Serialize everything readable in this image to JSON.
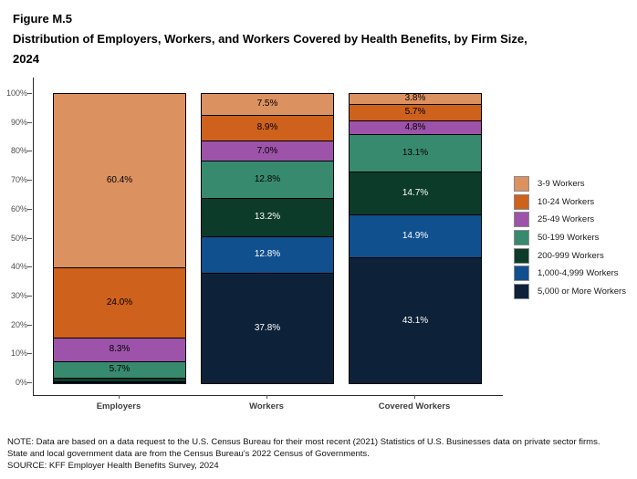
{
  "heading": {
    "lines": [
      "Figure M.5",
      "Distribution of Employers, Workers, and Workers Covered by Health Benefits, by Firm Size,",
      "2024"
    ]
  },
  "chart_data": {
    "type": "bar",
    "stacked": true,
    "title": "Distribution of Employers, Workers, and Workers Covered by Health Benefits, by Firm Size, 2024",
    "categories": [
      "Employers",
      "Workers",
      "Covered Workers"
    ],
    "series": [
      {
        "name": "3-9 Workers",
        "color": "#DC9160",
        "text_color": "#000000",
        "values": [
          60.4,
          7.5,
          3.8
        ],
        "labels": [
          "60.4%",
          "7.5%",
          "3.8%"
        ]
      },
      {
        "name": "10-24 Workers",
        "color": "#CE611B",
        "text_color": "#000000",
        "values": [
          24.0,
          8.9,
          5.7
        ],
        "labels": [
          "24.0%",
          "8.9%",
          "5.7%"
        ]
      },
      {
        "name": "25-49 Workers",
        "color": "#9D53A9",
        "text_color": "#000000",
        "values": [
          8.3,
          7.0,
          4.8
        ],
        "labels": [
          "8.3%",
          "7.0%",
          "4.8%"
        ]
      },
      {
        "name": "50-199 Workers",
        "color": "#388A6E",
        "text_color": "#000000",
        "values": [
          5.7,
          12.8,
          13.1
        ],
        "labels": [
          "5.7%",
          "12.8%",
          "13.1%"
        ]
      },
      {
        "name": "200-999 Workers",
        "color": "#0C3B2A",
        "text_color": "#FFFFFF",
        "values": [
          1.2,
          13.2,
          14.7
        ],
        "labels": [
          "",
          "13.2%",
          "14.7%"
        ]
      },
      {
        "name": "1,000-4,999 Workers",
        "color": "#11508F",
        "text_color": "#FFFFFF",
        "values": [
          0.3,
          12.8,
          14.9
        ],
        "labels": [
          "",
          "12.8%",
          "14.9%"
        ]
      },
      {
        "name": "5,000 or More Workers",
        "color": "#0D2239",
        "text_color": "#FFFFFF",
        "values": [
          0.1,
          37.8,
          43.1
        ],
        "labels": [
          "",
          "37.8%",
          "43.1%"
        ]
      }
    ],
    "y_ticks": [
      "0%",
      "10%",
      "20%",
      "30%",
      "40%",
      "50%",
      "60%",
      "70%",
      "80%",
      "90%",
      "100%"
    ],
    "ylim": [
      0,
      100
    ],
    "xlabel": "",
    "ylabel": "",
    "grid": false,
    "legend_position": "right"
  },
  "footer": {
    "note": "NOTE: Data are based on a data request to the U.S. Census Bureau for their most recent (2021) Statistics of U.S. Businesses data on private sector firms. State and local government data are from the Census Bureau's 2022 Census of Governments.",
    "source": "SOURCE: KFF Employer Health Benefits Survey, 2024"
  }
}
